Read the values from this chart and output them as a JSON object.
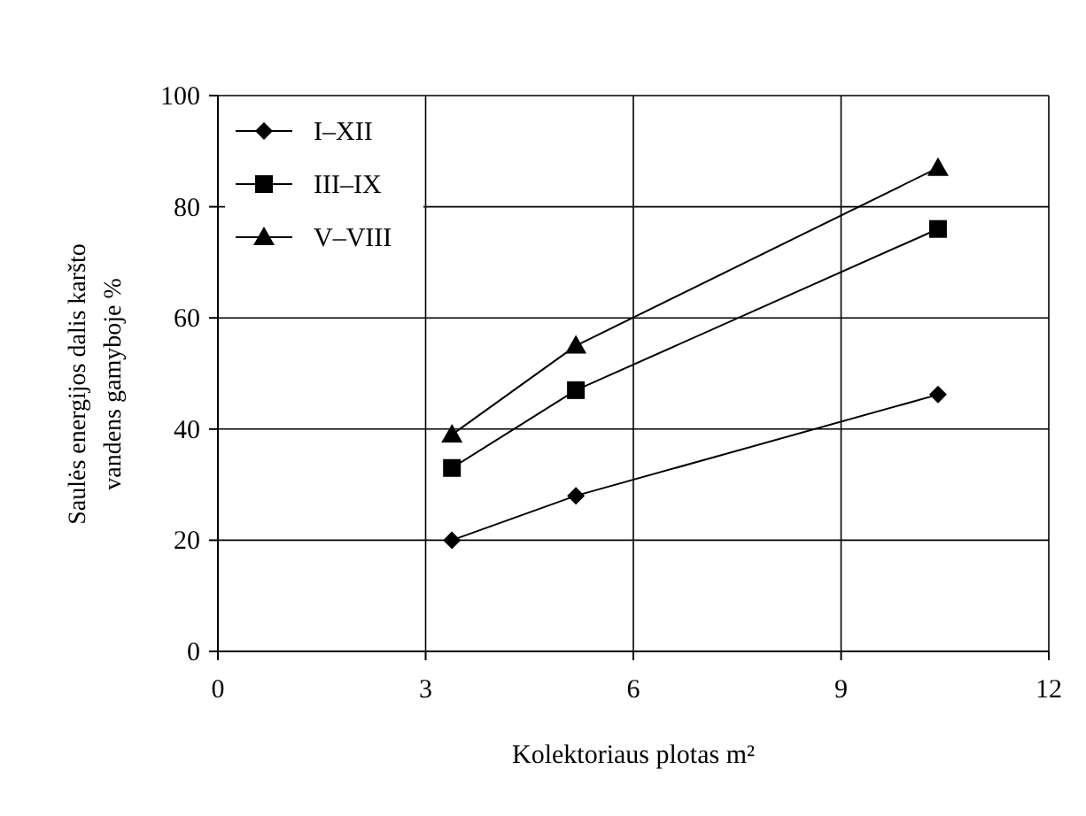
{
  "chart_data": {
    "type": "line",
    "xlabel": "Kolektoriaus plotas m²",
    "ylabel": "Saulės energijos dalis karšto\nvandens gamyboje %",
    "xlim": [
      0,
      12
    ],
    "xticks": [
      0,
      3,
      6,
      9,
      12
    ],
    "ylim": [
      0,
      100
    ],
    "yticks": [
      0,
      20,
      40,
      60,
      80,
      100
    ],
    "grid": true,
    "legend": "top left",
    "line_style": "solid",
    "series": [
      {
        "name": "I–XII",
        "color": "#000000",
        "marker": "diamond",
        "x": [
          3.38,
          5.17,
          10.4
        ],
        "values": [
          20,
          28,
          46.2
        ]
      },
      {
        "name": "III–IX",
        "color": "#000000",
        "marker": "square",
        "x": [
          3.38,
          5.17,
          10.4
        ],
        "values": [
          33,
          47,
          76
        ]
      },
      {
        "name": "V–VIII",
        "color": "#000000",
        "marker": "triangle",
        "x": [
          3.38,
          5.17,
          10.4
        ],
        "values": [
          39,
          55,
          87
        ]
      }
    ]
  }
}
